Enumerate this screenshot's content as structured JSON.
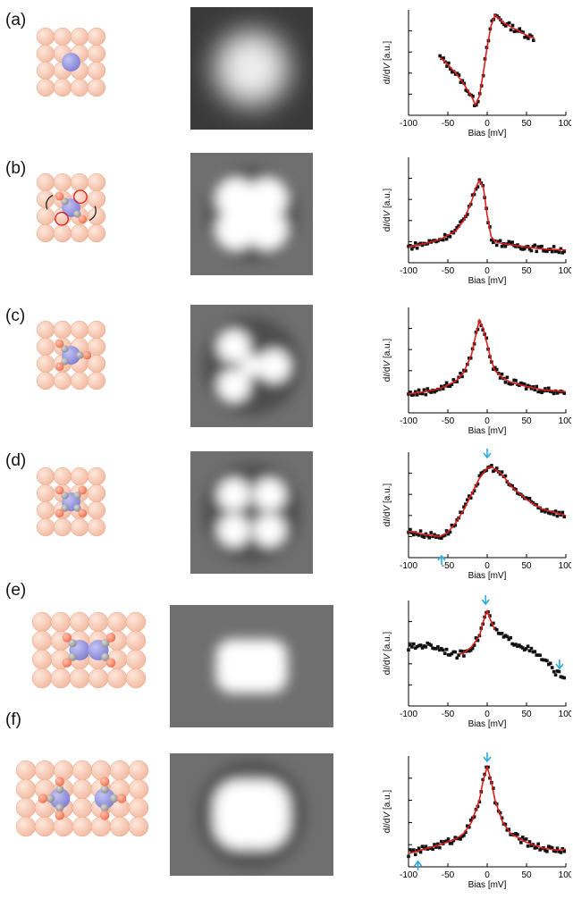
{
  "panels": [
    {
      "label": "(a)",
      "molecule": "single-adatom",
      "stm": "round-blob",
      "spectrum": "fano-dip-peak"
    },
    {
      "label": "(b)",
      "molecule": "adatom-two-co-rotating",
      "stm": "four-lobe-soft",
      "spectrum": "peak"
    },
    {
      "label": "(c)",
      "molecule": "adatom-three-co",
      "stm": "three-lobe",
      "spectrum": "peak"
    },
    {
      "label": "(d)",
      "molecule": "adatom-four-co",
      "stm": "four-lobe-cross",
      "spectrum": "peak-with-arrows"
    },
    {
      "label": "(e)",
      "molecule": "dimer",
      "stm": "rectangle",
      "spectrum": "peak-with-arrows"
    },
    {
      "label": "(f)",
      "molecule": "two-separated",
      "stm": "broad-blob",
      "spectrum": "peak-with-arrows"
    }
  ],
  "axes": {
    "xlabel": "Bias [mV]",
    "ylabel_prefix": "d",
    "ylabel_I": "I",
    "ylabel_mid": "/d",
    "ylabel_V": "V",
    "ylabel_suffix": " [a.u.]",
    "xticks": [
      "-100",
      "-50",
      "0",
      "50",
      "100"
    ]
  },
  "colors": {
    "substrate": "#f2b9a0",
    "adatom": "#7f7fd2",
    "oxygen": "#f06d4c",
    "carbon": "#8a8a8a",
    "data": "#111111",
    "fit": "#dd1d1d",
    "arrow": "#2aa8e0"
  },
  "chart_data": [
    {
      "type": "scatter",
      "panel": "(a)",
      "xlabel": "Bias [mV]",
      "ylabel": "dI/dV [a.u.]",
      "xlim": [
        -100,
        100
      ],
      "series": [
        {
          "x": [
            -60,
            -50,
            -40,
            -30,
            -20,
            -15,
            -10,
            -5,
            0,
            5,
            10,
            15,
            20,
            30,
            40,
            50,
            60
          ],
          "y": [
            0.55,
            0.48,
            0.4,
            0.3,
            0.18,
            0.1,
            0.18,
            0.4,
            0.65,
            0.85,
            0.95,
            0.92,
            0.88,
            0.84,
            0.8,
            0.76,
            0.73
          ]
        }
      ]
    },
    {
      "type": "scatter",
      "panel": "(b)",
      "xlabel": "Bias [mV]",
      "ylabel": "dI/dV [a.u.]",
      "xlim": [
        -100,
        100
      ],
      "series": [
        {
          "x": [
            -100,
            -80,
            -60,
            -40,
            -30,
            -20,
            -15,
            -10,
            -5,
            0,
            5,
            10,
            20,
            30,
            50,
            70,
            100
          ],
          "y": [
            0.15,
            0.18,
            0.22,
            0.3,
            0.4,
            0.58,
            0.7,
            0.78,
            0.72,
            0.45,
            0.25,
            0.2,
            0.18,
            0.17,
            0.15,
            0.13,
            0.12
          ]
        }
      ]
    },
    {
      "type": "scatter",
      "panel": "(c)",
      "xlabel": "Bias [mV]",
      "ylabel": "dI/dV [a.u.]",
      "xlim": [
        -100,
        100
      ],
      "series": [
        {
          "x": [
            -100,
            -80,
            -60,
            -40,
            -30,
            -20,
            -15,
            -10,
            -5,
            0,
            5,
            10,
            20,
            30,
            50,
            70,
            100
          ],
          "y": [
            0.18,
            0.2,
            0.23,
            0.3,
            0.38,
            0.55,
            0.72,
            0.88,
            0.8,
            0.65,
            0.5,
            0.4,
            0.33,
            0.29,
            0.25,
            0.22,
            0.2
          ]
        }
      ]
    },
    {
      "type": "scatter",
      "panel": "(d)",
      "xlabel": "Bias [mV]",
      "ylabel": "dI/dV [a.u.]",
      "xlim": [
        -100,
        100
      ],
      "series": [
        {
          "x": [
            -100,
            -80,
            -60,
            -50,
            -40,
            -30,
            -20,
            -10,
            0,
            5,
            10,
            20,
            30,
            50,
            70,
            100
          ],
          "y": [
            0.25,
            0.22,
            0.2,
            0.24,
            0.33,
            0.45,
            0.6,
            0.75,
            0.85,
            0.86,
            0.84,
            0.78,
            0.68,
            0.55,
            0.46,
            0.4
          ]
        }
      ]
    },
    {
      "type": "scatter",
      "panel": "(e)",
      "xlabel": "Bias [mV]",
      "ylabel": "dI/dV [a.u.]",
      "xlim": [
        -100,
        100
      ],
      "series": [
        {
          "x": [
            -100,
            -80,
            -60,
            -40,
            -30,
            -20,
            -10,
            -5,
            0,
            5,
            10,
            20,
            30,
            50,
            70,
            80,
            90,
            100
          ],
          "y": [
            0.55,
            0.58,
            0.55,
            0.48,
            0.5,
            0.56,
            0.66,
            0.8,
            0.9,
            0.8,
            0.72,
            0.66,
            0.62,
            0.55,
            0.45,
            0.38,
            0.3,
            0.28
          ]
        }
      ]
    },
    {
      "type": "scatter",
      "panel": "(f)",
      "xlabel": "Bias [mV]",
      "ylabel": "dI/dV [a.u.]",
      "xlim": [
        -100,
        100
      ],
      "series": [
        {
          "x": [
            -100,
            -90,
            -80,
            -60,
            -40,
            -30,
            -20,
            -10,
            -5,
            0,
            5,
            10,
            20,
            30,
            50,
            70,
            90,
            100
          ],
          "y": [
            0.12,
            0.14,
            0.16,
            0.2,
            0.25,
            0.3,
            0.4,
            0.6,
            0.78,
            0.9,
            0.78,
            0.6,
            0.4,
            0.3,
            0.22,
            0.17,
            0.15,
            0.16
          ]
        }
      ]
    }
  ]
}
